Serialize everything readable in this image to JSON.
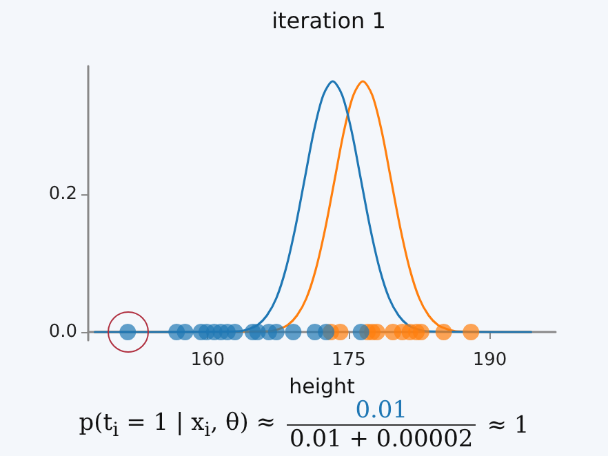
{
  "chart_data": {
    "type": "line",
    "title": "iteration 1",
    "xlabel": "height",
    "xlim": [
      147.3,
      197
    ],
    "xticks": [
      160,
      175,
      190
    ],
    "ylim": [
      -0.012,
      0.386
    ],
    "yticks": [
      {
        "value": 0,
        "label": "0.0"
      },
      0.2
    ],
    "grid": false,
    "series": [
      {
        "marker": "none",
        "color": "#ff7f0e",
        "x": [
          148,
          166.5,
          167.5,
          168.5,
          169.5,
          170.5,
          171.5,
          172.5,
          173.5,
          174.5,
          175.5,
          176.5,
          177.5,
          178.5,
          179.5,
          180.5,
          181.5,
          182.5,
          183.5,
          184.5,
          185.5,
          186.5,
          194.4
        ],
        "values": [
          0,
          0.001,
          0.004,
          0.01,
          0.024,
          0.049,
          0.091,
          0.15,
          0.221,
          0.292,
          0.344,
          0.364,
          0.344,
          0.292,
          0.221,
          0.15,
          0.091,
          0.049,
          0.024,
          0.01,
          0.004,
          0.001,
          0
        ]
      },
      {
        "marker": "none",
        "color": "#1f77b4",
        "x": [
          148,
          163.3,
          164.3,
          165.3,
          166.3,
          167.3,
          168.3,
          169.3,
          170.3,
          171.3,
          172.3,
          173.3,
          174.3,
          175.3,
          176.3,
          177.3,
          178.3,
          179.3,
          180.3,
          181.3,
          182.3,
          183.3,
          194.4
        ],
        "values": [
          0,
          0.001,
          0.004,
          0.01,
          0.024,
          0.049,
          0.091,
          0.15,
          0.221,
          0.292,
          0.344,
          0.364,
          0.344,
          0.292,
          0.221,
          0.15,
          0.091,
          0.049,
          0.024,
          0.01,
          0.004,
          0.001,
          0
        ]
      },
      {
        "type": "scatter",
        "marker": "circle",
        "color": "#ff7f0e",
        "x": [
          173.1,
          174.1,
          177,
          177.5,
          178,
          179.7,
          180.7,
          181.5,
          182.2,
          182.7,
          185.1,
          188
        ],
        "values": [
          0,
          0,
          0,
          0,
          0,
          0,
          0,
          0,
          0,
          0,
          0,
          0
        ]
      },
      {
        "type": "scatter",
        "marker": "circle",
        "color": "#1f77b4",
        "x": [
          151.5,
          156.7,
          157.6,
          159.3,
          159.9,
          160.7,
          161.4,
          162.1,
          162.9,
          164.8,
          165.3,
          166.5,
          167.3,
          169.1,
          171.4,
          172.6,
          176.3
        ],
        "values": [
          0,
          0,
          0,
          0,
          0,
          0,
          0,
          0,
          0,
          0,
          0,
          0,
          0,
          0,
          0,
          0,
          0
        ]
      }
    ],
    "annotations": [
      "p(t$_{i}$ = 1 | x$_{i}$, θ) ≈",
      "0.01",
      "0.01 + 0.00002",
      "≈ 1"
    ]
  }
}
